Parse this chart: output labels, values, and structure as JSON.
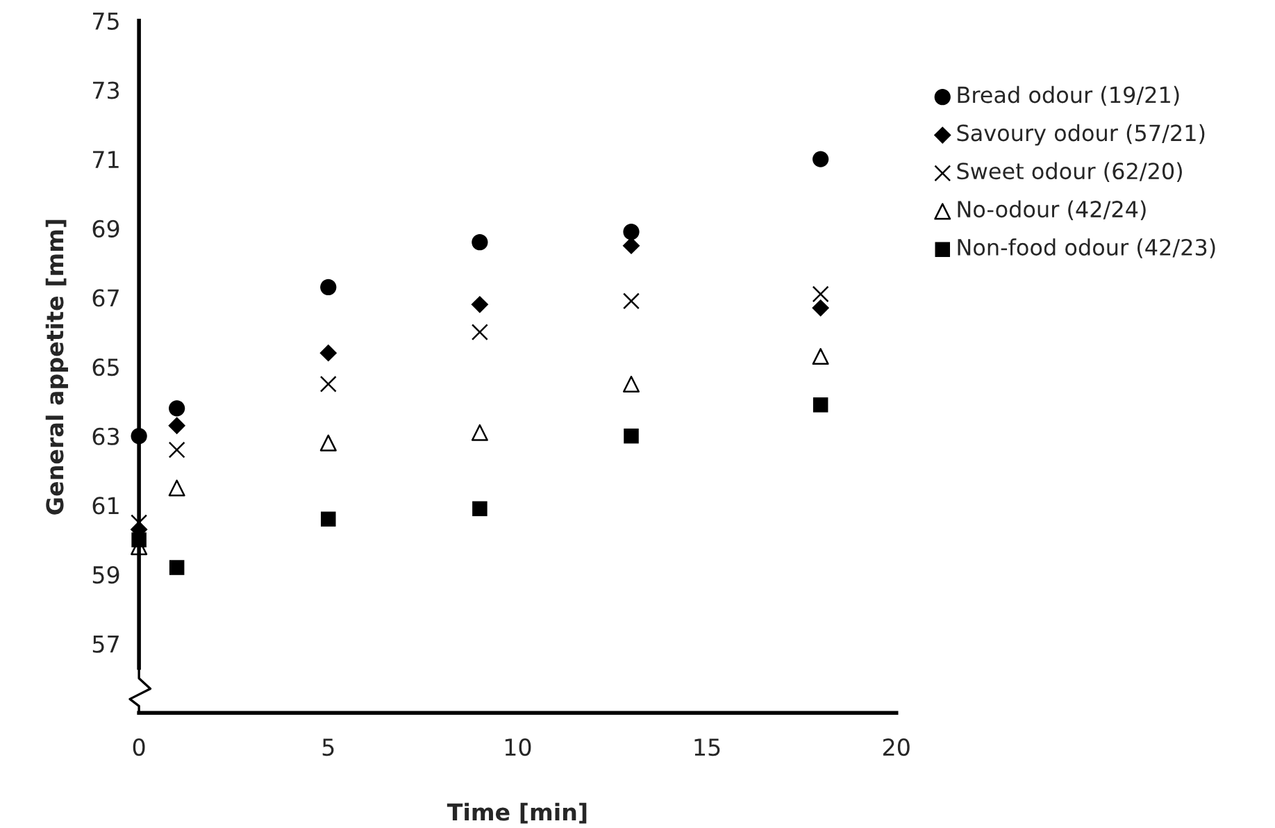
{
  "chart_data": {
    "type": "scatter",
    "xlabel": "Time [min]",
    "ylabel": "General appetite [mm]",
    "x": [
      0,
      1,
      5,
      9,
      13,
      18
    ],
    "series": [
      {
        "name": "Bread odour (19/21)",
        "color": "#000000",
        "marker": "circle",
        "values": [
          63.0,
          63.8,
          67.3,
          68.6,
          68.9,
          71.0
        ]
      },
      {
        "name": "Savoury odour (57/21)",
        "color": "#000000",
        "marker": "diamond",
        "values": [
          60.3,
          63.3,
          65.4,
          66.8,
          68.5,
          66.7
        ]
      },
      {
        "name": "Sweet odour (62/20)",
        "color": "#000000",
        "marker": "cross",
        "values": [
          60.5,
          62.6,
          64.5,
          66.0,
          66.9,
          67.1
        ]
      },
      {
        "name": "No-odour (42/24)",
        "color": "#000000",
        "marker": "triangle",
        "values": [
          59.8,
          61.5,
          62.8,
          63.1,
          64.5,
          65.3
        ]
      },
      {
        "name": "Non-food odour (42/23)",
        "color": "#000000",
        "marker": "square",
        "values": [
          60.0,
          59.2,
          60.6,
          60.9,
          63.0,
          63.9
        ]
      }
    ],
    "xlim": [
      0,
      20
    ],
    "xticks": [
      0,
      5,
      10,
      15,
      20
    ],
    "ylim": [
      55,
      75
    ],
    "yticks": [
      57,
      59,
      61,
      63,
      65,
      67,
      69,
      71,
      73,
      75
    ],
    "grid": false,
    "legend": "right"
  }
}
